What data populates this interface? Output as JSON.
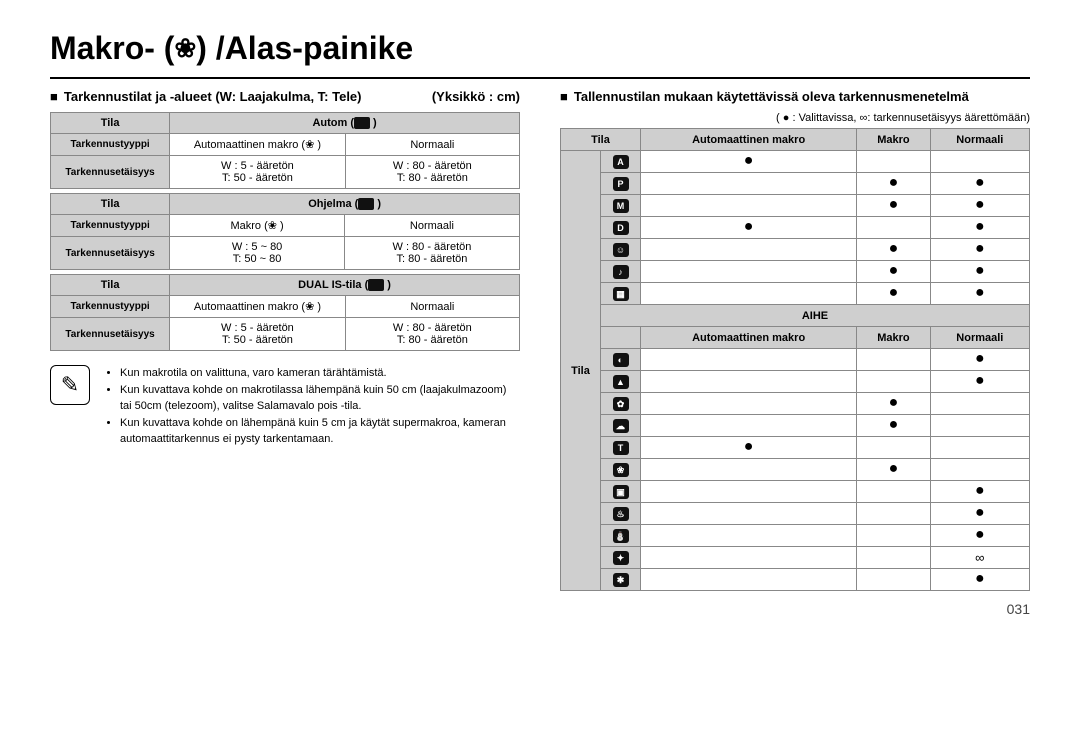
{
  "title_prefix": "Makro- (",
  "title_suffix": ") /Alas-painike",
  "left": {
    "heading": "Tarkennustilat ja -alueet (W: Laajakulma, T: Tele)",
    "unit_label": "(Yksikkö : cm)",
    "sections": [
      {
        "tila": "Tila",
        "mode": "Autom (",
        "type_label": "Tarkennustyyppi",
        "type_col1": "Automaattinen makro (",
        "type_col2": "Normaali",
        "dist_label": "Tarkennusetäisyys",
        "dist_col1": "W : 5 - ääretön\nT: 50 - ääretön",
        "dist_col2": "W : 80 - ääretön\nT: 80 - ääretön"
      },
      {
        "tila": "Tila",
        "mode": "Ohjelma (",
        "type_label": "Tarkennustyyppi",
        "type_col1": "Makro (",
        "type_col2": "Normaali",
        "dist_label": "Tarkennusetäisyys",
        "dist_col1": "W : 5 ~ 80\nT: 50 ~ 80",
        "dist_col2": "W : 80 - ääretön\nT: 80 - ääretön"
      },
      {
        "tila": "Tila",
        "mode": "DUAL IS-tila (",
        "type_label": "Tarkennustyyppi",
        "type_col1": "Automaattinen makro (",
        "type_col2": "Normaali",
        "dist_label": "Tarkennusetäisyys",
        "dist_col1": "W : 5 - ääretön\nT: 50 - ääretön",
        "dist_col2": "W : 80 - ääretön\nT: 80 - ääretön"
      }
    ],
    "notes": [
      "Kun makrotila on valittuna, varo kameran tärähtämistä.",
      "Kun kuvattava kohde on makrotilassa lähempänä kuin 50 cm (laajakulmazoom) tai 50cm (telezoom), valitse Salamavalo pois -tila.",
      "Kun kuvattava kohde on lähempänä kuin 5 cm ja käytät supermakroa, kameran automaattitarkennus ei pysty tarkentamaan."
    ]
  },
  "right": {
    "heading": "Tallennustilan mukaan käytettävissä oleva tarkennusmenetelmä",
    "legend": "( ● : Valittavissa, ∞: tarkennusetäisyys äärettömään)",
    "cols_top": [
      "Tila",
      "Automaattinen makro",
      "Makro",
      "Normaali"
    ],
    "tila_vert": "Tila",
    "rows_top": [
      {
        "ico": "A",
        "auto": "●",
        "makro": "",
        "norm": ""
      },
      {
        "ico": "P",
        "auto": "",
        "makro": "●",
        "norm": "●"
      },
      {
        "ico": "M",
        "auto": "",
        "makro": "●",
        "norm": "●"
      },
      {
        "ico": "D",
        "auto": "●",
        "makro": "",
        "norm": "●"
      },
      {
        "ico": "☺",
        "auto": "",
        "makro": "●",
        "norm": "●"
      },
      {
        "ico": "♪",
        "auto": "",
        "makro": "●",
        "norm": "●"
      },
      {
        "ico": "▦",
        "auto": "",
        "makro": "●",
        "norm": "●"
      }
    ],
    "aihe_label": "AIHE",
    "cols_bot": [
      "Automaattinen makro",
      "Makro",
      "Normaali"
    ],
    "rows_bot": [
      {
        "ico": "◐",
        "auto": "",
        "makro": "",
        "norm": "●"
      },
      {
        "ico": "▲",
        "auto": "",
        "makro": "",
        "norm": "●"
      },
      {
        "ico": "✿",
        "auto": "",
        "makro": "●",
        "norm": ""
      },
      {
        "ico": "☁",
        "auto": "",
        "makro": "●",
        "norm": ""
      },
      {
        "ico": "T",
        "auto": "●",
        "makro": "",
        "norm": ""
      },
      {
        "ico": "❀",
        "auto": "",
        "makro": "●",
        "norm": ""
      },
      {
        "ico": "▣",
        "auto": "",
        "makro": "",
        "norm": "●"
      },
      {
        "ico": "♨",
        "auto": "",
        "makro": "",
        "norm": "●"
      },
      {
        "ico": "⛄",
        "auto": "",
        "makro": "",
        "norm": "●"
      },
      {
        "ico": "✦",
        "auto": "",
        "makro": "",
        "norm": "∞"
      },
      {
        "ico": "✱",
        "auto": "",
        "makro": "",
        "norm": "●"
      }
    ]
  },
  "page_number": "031",
  "colors": {
    "header_bg": "#cfcfcf",
    "border": "#888888",
    "text": "#000000"
  }
}
